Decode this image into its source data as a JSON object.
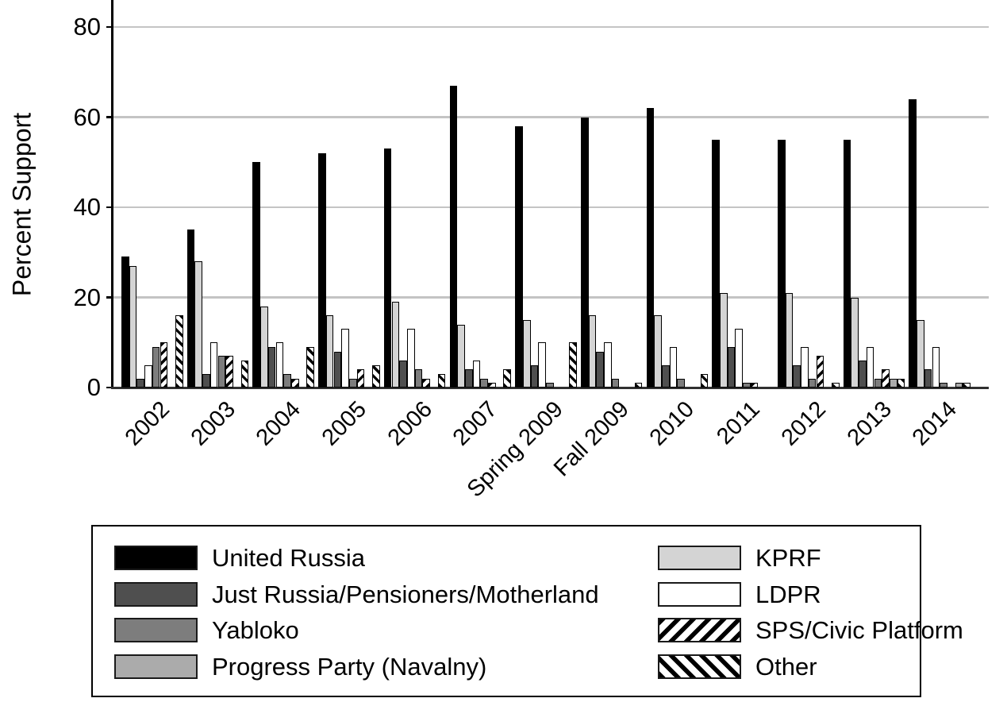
{
  "chart_data": {
    "type": "bar",
    "title": "",
    "xlabel": "",
    "ylabel": "Percent Support",
    "ylim": [
      0,
      85
    ],
    "yticks": [
      0,
      20,
      40,
      60,
      80
    ],
    "grid": "horizontal",
    "grid_color": "#c4c4c4",
    "axis_color": "#303030",
    "bar_outline_color": "#000000",
    "legend_position": "bottom box, two columns",
    "categories": [
      "2002",
      "2003",
      "2004",
      "2005",
      "2006",
      "2007",
      "Spring 2009",
      "Fall 2009",
      "2010",
      "2011",
      "2012",
      "2013",
      "2014"
    ],
    "series": [
      {
        "name": "United Russia",
        "key": "united-russia",
        "style": "solid",
        "color": "#000000",
        "values": [
          29,
          35,
          50,
          52,
          53,
          67,
          58,
          60,
          62,
          55,
          55,
          55,
          64
        ]
      },
      {
        "name": "KPRF",
        "key": "kprf",
        "style": "solid",
        "color": "#d4d4d4",
        "values": [
          27,
          28,
          18,
          16,
          19,
          14,
          15,
          16,
          16,
          21,
          21,
          20,
          15
        ]
      },
      {
        "name": "Just Russia/Pensioners/Motherland",
        "key": "just-russia",
        "style": "solid",
        "color": "#4f4f4f",
        "values": [
          2,
          3,
          9,
          8,
          6,
          4,
          5,
          8,
          5,
          9,
          5,
          6,
          4
        ]
      },
      {
        "name": "LDPR",
        "key": "ldpr",
        "style": "solid",
        "color": "#ffffff",
        "values": [
          5,
          10,
          10,
          13,
          13,
          6,
          10,
          10,
          9,
          13,
          9,
          9,
          9
        ]
      },
      {
        "name": "Yabloko",
        "key": "yabloko",
        "style": "solid",
        "color": "#7d7d7d",
        "values": [
          9,
          7,
          3,
          2,
          4,
          2,
          1,
          2,
          2,
          1,
          2,
          2,
          1
        ]
      },
      {
        "name": "SPS/Civic Platform",
        "key": "sps-civic-platform",
        "style": "hatch-forward",
        "color": "#000000",
        "values": [
          10,
          7,
          2,
          4,
          2,
          1,
          0,
          0,
          0,
          1,
          7,
          4,
          0
        ]
      },
      {
        "name": "Progress Party (Navalny)",
        "key": "progress-party",
        "style": "solid",
        "color": "#ababab",
        "values": [
          0,
          0,
          0,
          0,
          0,
          0,
          0,
          0,
          0,
          0,
          0,
          2,
          1
        ]
      },
      {
        "name": "Other",
        "key": "other",
        "style": "hatch-backward",
        "color": "#000000",
        "values": [
          16,
          6,
          9,
          5,
          3,
          4,
          10,
          1,
          3,
          0,
          1,
          2,
          1
        ]
      }
    ],
    "legend": {
      "left_column_keys": [
        "united-russia",
        "just-russia",
        "yabloko",
        "progress-party"
      ],
      "right_column_keys": [
        "kprf",
        "ldpr",
        "sps-civic-platform",
        "other"
      ]
    }
  }
}
